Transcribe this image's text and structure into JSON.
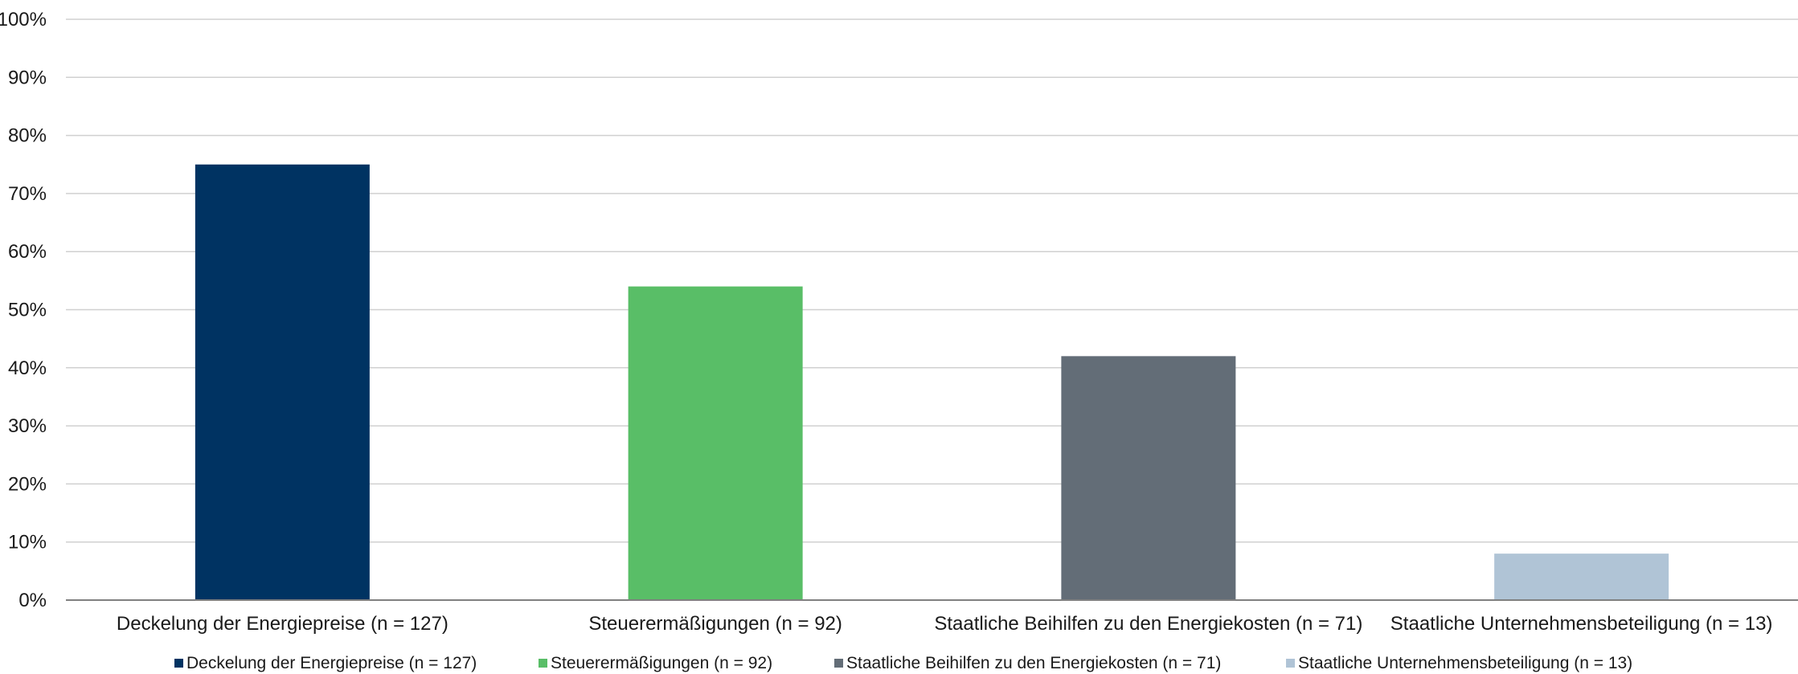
{
  "chart_data": {
    "type": "bar",
    "categories": [
      "Deckelung der Energiepreise (n = 127)",
      "Steuerermäßigungen (n = 92)",
      "Staatliche Beihilfen zu den Energiekosten (n = 71)",
      "Staatliche Unternehmensbeteiligung (n = 13)"
    ],
    "values": [
      75,
      54,
      42,
      8
    ],
    "value_unit": "%",
    "colors": [
      "#003362",
      "#59be67",
      "#636d77",
      "#b0c4d6"
    ],
    "ylim": [
      0,
      100
    ],
    "yticks": [
      "0%",
      "10%",
      "20%",
      "30%",
      "40%",
      "50%",
      "60%",
      "70%",
      "80%",
      "90%",
      "100%"
    ],
    "grid": true,
    "gridline_color": "#d0d0d0",
    "axis_color": "#808080",
    "legend": {
      "placement": "bottom",
      "entries": [
        "Deckelung der Energiepreise (n = 127)",
        "Steuerermäßigungen (n = 92)",
        "Staatliche Beihilfen zu den Energiekosten (n = 71)",
        "Staatliche Unternehmensbeteiligung (n = 13)"
      ]
    },
    "title": "",
    "xlabel": "",
    "ylabel": ""
  }
}
